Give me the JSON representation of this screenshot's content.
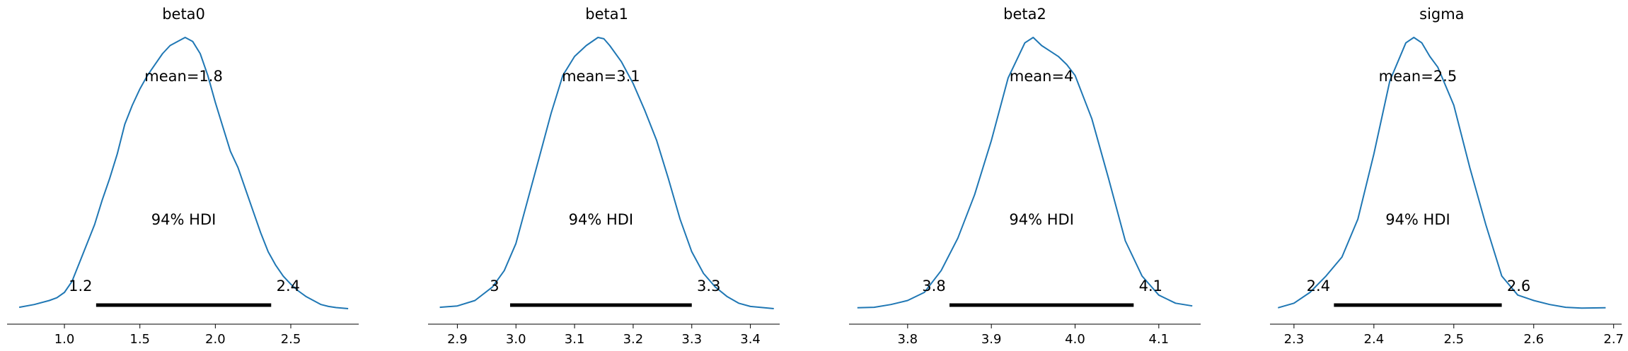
{
  "colors": {
    "kde": "#1f77b4",
    "hdi": "#000000",
    "axis": "#000000"
  },
  "chart_data": [
    {
      "type": "line",
      "title": "beta0",
      "mean_label": "mean=1.8",
      "hdi_label": "94% HDI",
      "hdi_low_label": "1.2",
      "hdi_high_label": "2.4",
      "hdi": [
        1.21,
        2.37
      ],
      "xlim": [
        0.62,
        2.95
      ],
      "xticks": [
        1.0,
        1.5,
        2.0,
        2.5
      ],
      "xtick_labels": [
        "1.0",
        "1.5",
        "2.0",
        "2.5"
      ],
      "x": [
        0.7,
        0.8,
        0.9,
        0.95,
        1.0,
        1.05,
        1.1,
        1.15,
        1.2,
        1.25,
        1.3,
        1.35,
        1.4,
        1.45,
        1.5,
        1.55,
        1.6,
        1.65,
        1.7,
        1.75,
        1.8,
        1.85,
        1.9,
        1.95,
        2.0,
        2.05,
        2.1,
        2.15,
        2.2,
        2.25,
        2.3,
        2.35,
        2.4,
        2.45,
        2.5,
        2.55,
        2.6,
        2.65,
        2.7,
        2.75,
        2.8,
        2.88
      ],
      "y": [
        0.005,
        0.015,
        0.03,
        0.04,
        0.06,
        0.1,
        0.17,
        0.24,
        0.31,
        0.4,
        0.48,
        0.57,
        0.68,
        0.75,
        0.81,
        0.86,
        0.9,
        0.94,
        0.97,
        0.985,
        1.0,
        0.985,
        0.94,
        0.86,
        0.76,
        0.67,
        0.58,
        0.52,
        0.44,
        0.36,
        0.28,
        0.21,
        0.16,
        0.12,
        0.09,
        0.065,
        0.045,
        0.03,
        0.015,
        0.008,
        0.004,
        0.0
      ]
    },
    {
      "type": "line",
      "title": "beta1",
      "mean_label": "mean=3.1",
      "hdi_label": "94% HDI",
      "hdi_low_label": "3",
      "hdi_high_label": "3.3",
      "hdi": [
        2.99,
        3.3
      ],
      "xlim": [
        2.85,
        3.45
      ],
      "xticks": [
        2.9,
        3.0,
        3.1,
        3.2,
        3.3,
        3.4
      ],
      "xtick_labels": [
        "2.9",
        "3.0",
        "3.1",
        "3.2",
        "3.3",
        "3.4"
      ],
      "x": [
        2.87,
        2.9,
        2.93,
        2.96,
        2.98,
        3.0,
        3.02,
        3.04,
        3.06,
        3.08,
        3.1,
        3.12,
        3.14,
        3.15,
        3.16,
        3.18,
        3.2,
        3.22,
        3.24,
        3.26,
        3.28,
        3.3,
        3.32,
        3.34,
        3.36,
        3.38,
        3.4,
        3.44
      ],
      "y": [
        0.005,
        0.01,
        0.03,
        0.08,
        0.14,
        0.24,
        0.4,
        0.56,
        0.72,
        0.86,
        0.93,
        0.97,
        1.0,
        0.995,
        0.97,
        0.91,
        0.83,
        0.73,
        0.62,
        0.48,
        0.33,
        0.21,
        0.13,
        0.08,
        0.045,
        0.02,
        0.008,
        0.0
      ]
    },
    {
      "type": "line",
      "title": "beta2",
      "mean_label": "mean=4",
      "hdi_label": "94% HDI",
      "hdi_low_label": "3.8",
      "hdi_high_label": "4.1",
      "hdi": [
        3.85,
        4.07
      ],
      "xlim": [
        3.73,
        4.15
      ],
      "xticks": [
        3.8,
        3.9,
        4.0,
        4.1
      ],
      "xtick_labels": [
        "3.8",
        "3.9",
        "4.0",
        "4.1"
      ],
      "x": [
        3.74,
        3.76,
        3.78,
        3.8,
        3.82,
        3.84,
        3.86,
        3.88,
        3.9,
        3.92,
        3.94,
        3.95,
        3.96,
        3.97,
        3.98,
        3.99,
        4.0,
        4.02,
        4.04,
        4.06,
        4.08,
        4.1,
        4.12,
        4.14
      ],
      "y": [
        0.003,
        0.005,
        0.015,
        0.03,
        0.06,
        0.14,
        0.26,
        0.42,
        0.62,
        0.85,
        0.98,
        1.0,
        0.97,
        0.95,
        0.93,
        0.9,
        0.86,
        0.7,
        0.48,
        0.25,
        0.12,
        0.05,
        0.02,
        0.01
      ]
    },
    {
      "type": "line",
      "title": "sigma",
      "mean_label": "mean=2.5",
      "hdi_label": "94% HDI",
      "hdi_low_label": "2.4",
      "hdi_high_label": "2.6",
      "hdi": [
        2.35,
        2.56
      ],
      "xlim": [
        2.27,
        2.71
      ],
      "xticks": [
        2.3,
        2.4,
        2.5,
        2.6,
        2.7
      ],
      "xtick_labels": [
        "2.3",
        "2.4",
        "2.5",
        "2.6",
        "2.7"
      ],
      "x": [
        2.28,
        2.3,
        2.32,
        2.34,
        2.36,
        2.38,
        2.4,
        2.42,
        2.44,
        2.45,
        2.46,
        2.47,
        2.48,
        2.5,
        2.52,
        2.54,
        2.56,
        2.58,
        2.6,
        2.62,
        2.64,
        2.66,
        2.69
      ],
      "y": [
        0.003,
        0.02,
        0.06,
        0.12,
        0.19,
        0.33,
        0.57,
        0.84,
        0.98,
        1.0,
        0.98,
        0.93,
        0.89,
        0.75,
        0.52,
        0.31,
        0.12,
        0.05,
        0.03,
        0.015,
        0.005,
        0.002,
        0.003
      ]
    }
  ]
}
